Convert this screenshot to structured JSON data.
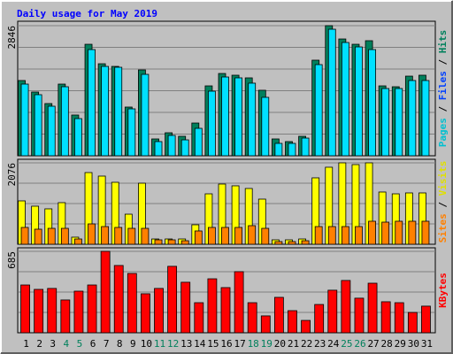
{
  "chart_data": {
    "type": "bar",
    "title": "Daily usage for May 2019",
    "categories": [
      "1",
      "2",
      "3",
      "4",
      "5",
      "6",
      "7",
      "8",
      "9",
      "10",
      "11",
      "12",
      "13",
      "14",
      "15",
      "16",
      "17",
      "18",
      "19",
      "20",
      "21",
      "22",
      "23",
      "24",
      "25",
      "26",
      "27",
      "28",
      "29",
      "30",
      "31"
    ],
    "weekend": [
      false,
      false,
      false,
      true,
      true,
      false,
      false,
      false,
      false,
      false,
      true,
      true,
      false,
      false,
      false,
      false,
      false,
      true,
      true,
      false,
      false,
      false,
      false,
      false,
      true,
      true,
      false,
      false,
      false,
      false,
      false
    ],
    "weekday_color": "#000000",
    "weekend_color": "#00805c",
    "title_color": "#0000ff",
    "legend_separator": "/",
    "grid": true,
    "panels": [
      {
        "ylim": [
          0,
          2846
        ],
        "yticks": [
          2846
        ],
        "legend": [
          {
            "text": "Pages",
            "color": "#00c0d0"
          },
          {
            "text": "Files",
            "color": "#0040ff"
          },
          {
            "text": "Hits",
            "color": "#00805c"
          }
        ],
        "series": [
          {
            "color": "#00805c",
            "values": [
              1646,
              1394,
              1142,
              1568,
              891,
              2439,
              2013,
              1955,
              1065,
              1878,
              368,
              503,
              426,
              716,
              1529,
              1800,
              1762,
              1704,
              1433,
              368,
              310,
              426,
              2091,
              2846,
              2555,
              2439,
              2517,
              1529,
              1510,
              1742,
              1762
            ]
          },
          {
            "color": "#00e0ff",
            "values": [
              1568,
              1336,
              1084,
              1510,
              813,
              2323,
              1955,
              1936,
              1026,
              1781,
              310,
              445,
              348,
              600,
              1413,
              1723,
              1704,
              1588,
              1278,
              271,
              271,
              387,
              1994,
              2768,
              2478,
              2381,
              2323,
              1471,
              1471,
              1646,
              1646
            ]
          }
        ]
      },
      {
        "ylim": [
          0,
          2076
        ],
        "yticks": [
          2076
        ],
        "legend": [
          {
            "text": "Sites",
            "color": "#ff8000"
          },
          {
            "text": "Visits",
            "color": "#e0e000"
          }
        ],
        "series": [
          {
            "color": "#ffff00",
            "values": [
              1106,
              971,
              903,
              1061,
              181,
              1828,
              1738,
              1580,
              767,
              1557,
              135,
              135,
              135,
              497,
              1286,
              1535,
              1490,
              1422,
              1151,
              113,
              113,
              135,
              1693,
              1964,
              2076,
              2031,
              2076,
              1332,
              1286,
              1309,
              1309
            ]
          },
          {
            "color": "#ff8000",
            "values": [
              429,
              384,
              406,
              406,
              135,
              519,
              451,
              429,
              406,
              406,
              113,
              113,
              90,
              339,
              429,
              429,
              429,
              474,
              406,
              68,
              68,
              90,
              451,
              451,
              451,
              451,
              587,
              564,
              587,
              587,
              587
            ]
          }
        ]
      },
      {
        "ylim": [
          0,
          685
        ],
        "yticks": [
          685
        ],
        "legend": [
          {
            "text": "KBytes",
            "color": "#ff0000"
          }
        ],
        "series": [
          {
            "color": "#ff0000",
            "values": [
              402,
              365,
              373,
              276,
              350,
              402,
              685,
              566,
              499,
              328,
              373,
              559,
              425,
              253,
              454,
              380,
              514,
              253,
              142,
              298,
              186,
              104,
              238,
              358,
              440,
              291,
              417,
              261,
              253,
              171,
              224
            ]
          }
        ]
      }
    ]
  }
}
